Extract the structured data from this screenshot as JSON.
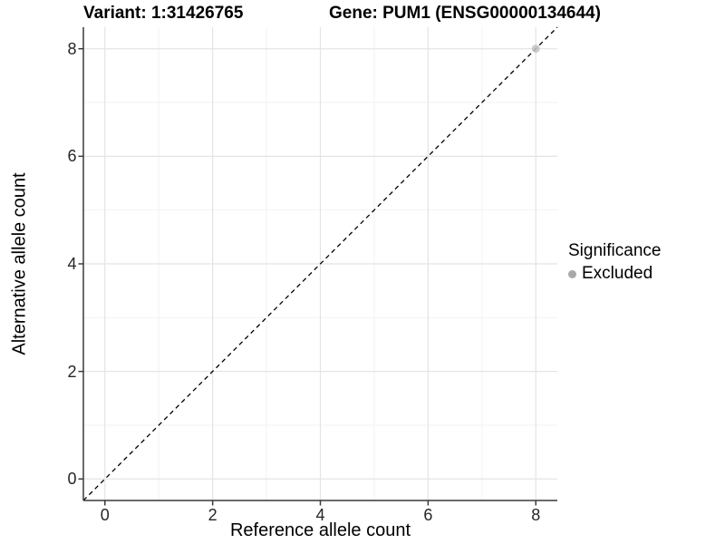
{
  "chart_data": {
    "type": "scatter",
    "title_left": "Variant: 1:31426765",
    "title_right": "Gene: PUM1 (ENSG00000134644)",
    "xlabel": "Reference allele count",
    "ylabel": "Alternative allele count",
    "xlim": [
      -0.4,
      8.4
    ],
    "ylim": [
      -0.4,
      8.4
    ],
    "xticks": [
      0,
      2,
      4,
      6,
      8
    ],
    "yticks": [
      0,
      2,
      4,
      6,
      8
    ],
    "minor_xticks": [
      1,
      3,
      5,
      7
    ],
    "minor_yticks": [
      1,
      3,
      5,
      7
    ],
    "grid": "major and minor gridlines, light gray on white panel",
    "reference_line": {
      "type": "identity y=x",
      "style": "dashed",
      "color": "#000000"
    },
    "points": [
      {
        "x": 8,
        "y": 8,
        "significance": "Excluded"
      }
    ],
    "legend": {
      "title": "Significance",
      "position": "right-center",
      "entries": [
        {
          "label": "Excluded",
          "color": "#a9a9a9"
        }
      ]
    }
  },
  "colors": {
    "background": "#ffffff",
    "point": "#c2c2c2",
    "legend_key": "#a9a9a9",
    "grid_major": "#e4e4e4",
    "grid_minor": "#f2f2f2",
    "axis_line": "#3a3a3a",
    "dashed_line": "#000000",
    "tick_text": "#262626"
  }
}
